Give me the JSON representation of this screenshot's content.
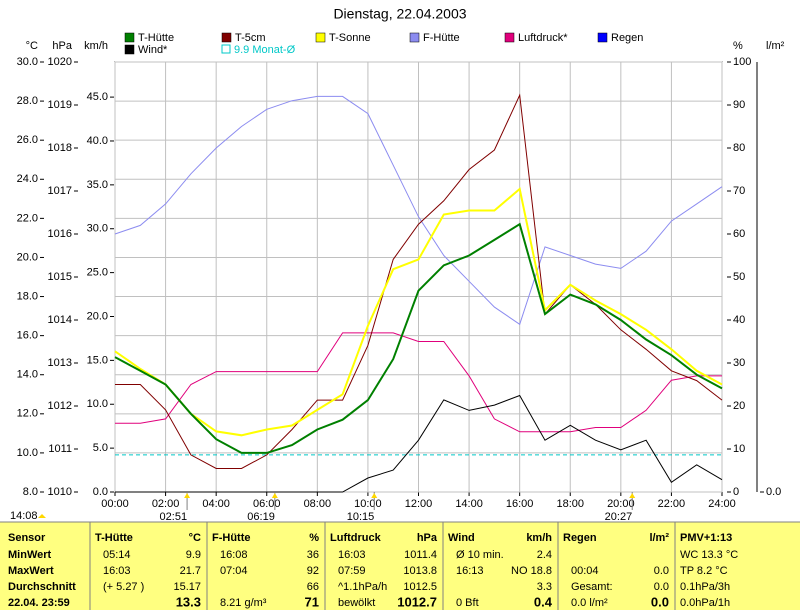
{
  "chart_data": {
    "type": "line",
    "title": "Dienstag, 22.04.2003",
    "grid": true,
    "x": [
      0,
      1,
      2,
      3,
      4,
      5,
      6,
      7,
      8,
      9,
      10,
      11,
      12,
      13,
      14,
      15,
      16,
      17,
      18,
      19,
      20,
      21,
      22,
      23,
      24
    ],
    "xlim": [
      0,
      24
    ],
    "xticks": [
      {
        "value": 0,
        "label": "00:00"
      },
      {
        "value": 2,
        "label": "02:00"
      },
      {
        "value": 4,
        "label": "04:00"
      },
      {
        "value": 6,
        "label": "06:00"
      },
      {
        "value": 8,
        "label": "08:00"
      },
      {
        "value": 10,
        "label": "10:00"
      },
      {
        "value": 12,
        "label": "12:00"
      },
      {
        "value": 14,
        "label": "14:00"
      },
      {
        "value": 16,
        "label": "16:00"
      },
      {
        "value": 18,
        "label": "18:00"
      },
      {
        "value": 20,
        "label": "20:00"
      },
      {
        "value": 22,
        "label": "22:00"
      },
      {
        "value": 24,
        "label": "24:00"
      }
    ],
    "axes": [
      {
        "unit": "°C",
        "lim": [
          8,
          30
        ],
        "ticks": [
          {
            "value": 8,
            "label": "8.0"
          },
          {
            "value": 10,
            "label": "10.0"
          },
          {
            "value": 12,
            "label": "12.0"
          },
          {
            "value": 14,
            "label": "14.0"
          },
          {
            "value": 16,
            "label": "16.0"
          },
          {
            "value": 18,
            "label": "18.0"
          },
          {
            "value": 20,
            "label": "20.0"
          },
          {
            "value": 22,
            "label": "22.0"
          },
          {
            "value": 24,
            "label": "24.0"
          },
          {
            "value": 26,
            "label": "26.0"
          },
          {
            "value": 28,
            "label": "28.0"
          },
          {
            "value": 30,
            "label": "30.0"
          }
        ]
      },
      {
        "unit": "hPa",
        "lim": [
          1010,
          1020
        ],
        "ticks": [
          1010,
          1011,
          1012,
          1013,
          1014,
          1015,
          1016,
          1017,
          1018,
          1019,
          1020
        ]
      },
      {
        "unit": "km/h",
        "lim": [
          0,
          49
        ],
        "ticks": [
          {
            "value": 0,
            "label": "0.0"
          },
          {
            "value": 5,
            "label": "5.0"
          },
          {
            "value": 10,
            "label": "10.0"
          },
          {
            "value": 15,
            "label": "15.0"
          },
          {
            "value": 20,
            "label": "20.0"
          },
          {
            "value": 25,
            "label": "25.0"
          },
          {
            "value": 30,
            "label": "30.0"
          },
          {
            "value": 35,
            "label": "35.0"
          },
          {
            "value": 40,
            "label": "40.0"
          },
          {
            "value": 45,
            "label": "45.0"
          }
        ]
      },
      {
        "unit": "%",
        "lim": [
          0,
          100
        ],
        "ticks": [
          0,
          10,
          20,
          30,
          40,
          50,
          60,
          70,
          80,
          90,
          100
        ]
      },
      {
        "unit": "l/m²",
        "ticks": [
          {
            "value": 0,
            "label": "0.0"
          }
        ]
      }
    ],
    "series": [
      {
        "name": "T-Hütte",
        "color": "#008000",
        "axis": 0,
        "values": [
          14.9,
          14.2,
          13.5,
          12.0,
          10.7,
          10.0,
          10.0,
          10.4,
          11.2,
          11.7,
          12.7,
          14.8,
          18.3,
          19.6,
          20.1,
          20.9,
          21.7,
          17.1,
          18.1,
          17.6,
          16.8,
          15.8,
          15.0,
          14.0,
          13.3
        ]
      },
      {
        "name": "T-5cm",
        "color": "#800000",
        "axis": 0,
        "values": [
          13.5,
          13.5,
          12.2,
          9.9,
          9.2,
          9.2,
          9.9,
          11.2,
          12.7,
          12.7,
          15.5,
          19.9,
          21.7,
          22.9,
          24.5,
          25.5,
          28.3,
          17.1,
          18.6,
          17.6,
          16.3,
          15.3,
          14.2,
          13.7,
          12.7
        ]
      },
      {
        "name": "T-Sonne",
        "color": "#ffff00",
        "axis": 0,
        "values": [
          15.2,
          14.3,
          13.5,
          12.0,
          11.1,
          10.9,
          11.2,
          11.4,
          12.2,
          13.0,
          16.5,
          19.4,
          19.9,
          22.2,
          22.4,
          22.4,
          23.5,
          17.3,
          18.6,
          17.8,
          17.1,
          16.3,
          15.3,
          14.2,
          13.5
        ]
      },
      {
        "name": "F-Hütte",
        "color": "#8c8cf0",
        "axis": 3,
        "values": [
          60,
          62,
          67,
          74,
          80,
          85,
          89,
          91,
          92,
          92,
          88,
          76,
          64,
          55,
          49,
          43,
          39,
          57,
          55,
          53,
          52,
          56,
          63,
          67,
          71
        ]
      },
      {
        "name": "Luftdruck*",
        "color": "#e0007c",
        "axis": 1,
        "values": [
          1011.6,
          1011.6,
          1011.7,
          1012.5,
          1012.8,
          1012.8,
          1012.8,
          1012.8,
          1012.8,
          1013.7,
          1013.7,
          1013.7,
          1013.5,
          1013.5,
          1012.7,
          1011.7,
          1011.4,
          1011.4,
          1011.4,
          1011.5,
          1011.5,
          1011.9,
          1012.6,
          1012.7,
          1012.7
        ]
      },
      {
        "name": "Wind*",
        "color": "#000000",
        "axis": 2,
        "values": [
          0,
          0,
          0,
          0,
          0,
          0,
          0,
          0,
          0,
          0,
          1.6,
          2.5,
          5.9,
          10.5,
          9.3,
          9.9,
          11.0,
          5.9,
          7.6,
          5.9,
          4.8,
          5.9,
          1.1,
          3.1,
          1.4
        ]
      },
      {
        "name": "Regen",
        "color": "#0000ff",
        "axis": 4
      }
    ],
    "reference": {
      "label": "9.9 Monat-Ø",
      "value": 9.9,
      "color": "#00c8c8",
      "axis": 0
    },
    "now": "14:08",
    "markers": [
      {
        "value": 2.85,
        "label": "02:51"
      },
      {
        "value": 6.32,
        "label": "06:19"
      },
      {
        "value": 10.25,
        "label": "10:15"
      },
      {
        "value": 20.45,
        "label": "20:27"
      }
    ]
  },
  "table": {
    "row_labels": [
      "Sensor",
      "MinWert",
      "MaxWert",
      "Durchschnitt",
      "22.04. 23:59"
    ],
    "sections": [
      {
        "name": "T-Hütte",
        "unit": "°C",
        "rows": [
          [
            "05:14",
            "9.9"
          ],
          [
            "16:03",
            "21.7"
          ],
          [
            "(+ 5.27 )",
            "15.17"
          ],
          [
            null,
            "13.3"
          ]
        ]
      },
      {
        "name": "F-Hütte",
        "unit": "%",
        "rows": [
          [
            "16:08",
            "36"
          ],
          [
            "07:04",
            "92"
          ],
          [
            null,
            "66"
          ],
          [
            "8.21 g/m³",
            "71"
          ]
        ]
      },
      {
        "name": "Luftdruck",
        "unit": "hPa",
        "rows": [
          [
            "16:03",
            "1011.4"
          ],
          [
            "07:59",
            "1013.8"
          ],
          [
            "^1.1hPa/h",
            "1012.5"
          ],
          [
            "bewölkt",
            "1012.7"
          ]
        ]
      },
      {
        "name": "Wind",
        "unit": "km/h",
        "rows": [
          [
            "Ø 10 min.",
            "2.4"
          ],
          [
            "16:13",
            "NO 18.8"
          ],
          [
            null,
            "3.3"
          ],
          [
            "0 Bft",
            "0.4"
          ]
        ]
      },
      {
        "name": "Regen",
        "unit": "l/m²",
        "rows": [
          [
            null,
            null
          ],
          [
            "00:04",
            "0.0"
          ],
          [
            "Gesamt:",
            "0.0"
          ],
          [
            "0.0 l/m²",
            "0.0"
          ]
        ]
      },
      {
        "name": "PMV+1:13",
        "rows": [
          [
            "WC 13.3 °C"
          ],
          [
            "TP 8.2 °C"
          ],
          [
            "0.1hPa/3h"
          ],
          [
            "0.0hPa/1h"
          ]
        ]
      }
    ]
  }
}
